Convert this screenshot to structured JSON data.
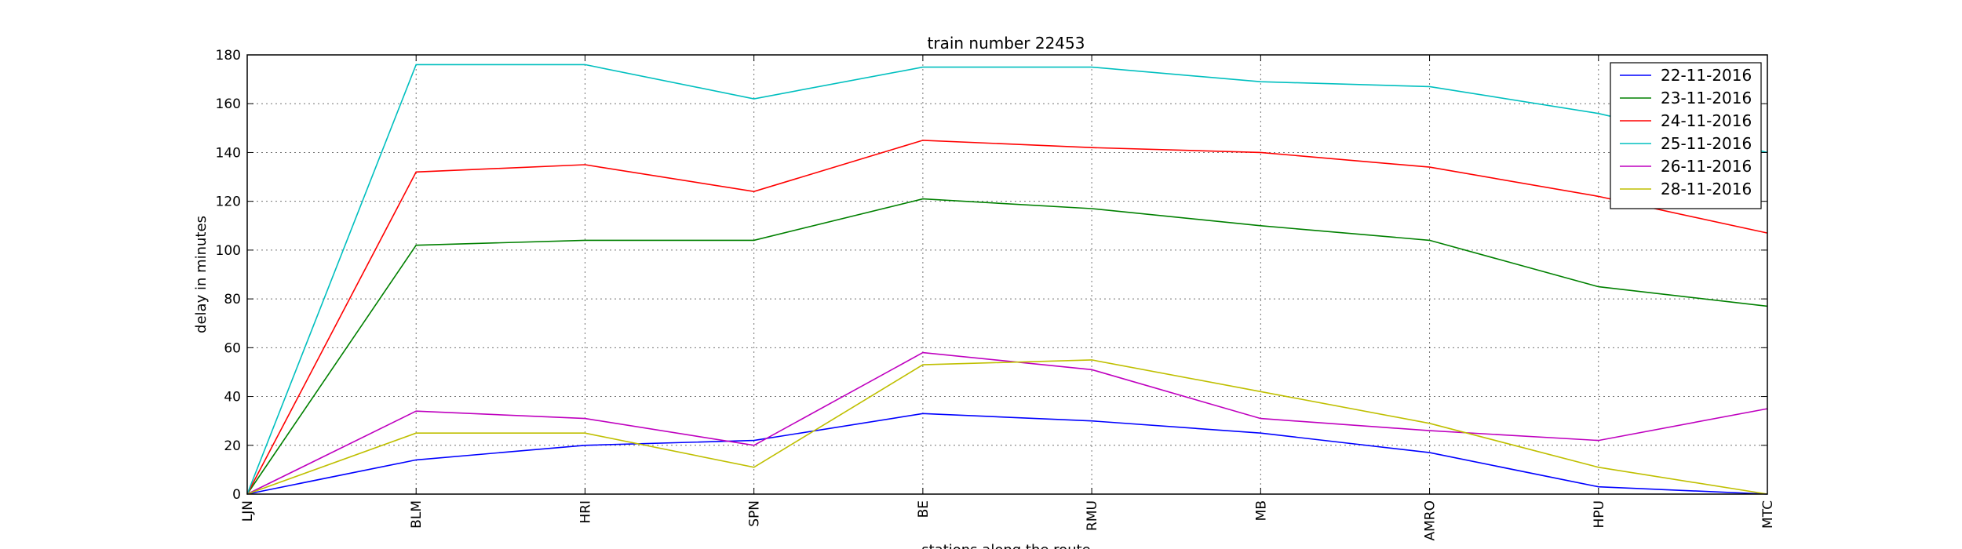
{
  "chart_data": {
    "type": "line",
    "title": "train number 22453",
    "xlabel": "stations along the route",
    "ylabel": "delay in minutes",
    "categories": [
      "LJN",
      "BLM",
      "HRI",
      "SPN",
      "BE",
      "RMU",
      "MB",
      "AMRO",
      "HPU",
      "MTC"
    ],
    "ylim": [
      0,
      180
    ],
    "yticks": [
      0,
      20,
      40,
      60,
      80,
      100,
      120,
      140,
      160,
      180
    ],
    "grid": true,
    "legend_position": "top-right",
    "series": [
      {
        "name": "22-11-2016",
        "color": "#0000ff",
        "values": [
          0,
          14,
          20,
          22,
          33,
          30,
          25,
          17,
          3,
          0
        ]
      },
      {
        "name": "23-11-2016",
        "color": "#008000",
        "values": [
          0,
          102,
          104,
          104,
          121,
          117,
          110,
          104,
          85,
          77
        ]
      },
      {
        "name": "24-11-2016",
        "color": "#ff0000",
        "values": [
          0,
          132,
          135,
          124,
          145,
          142,
          140,
          134,
          122,
          107
        ]
      },
      {
        "name": "25-11-2016",
        "color": "#00bfbf",
        "values": [
          0,
          176,
          176,
          162,
          175,
          175,
          169,
          167,
          156,
          140
        ]
      },
      {
        "name": "26-11-2016",
        "color": "#bf00bf",
        "values": [
          0,
          34,
          31,
          20,
          58,
          51,
          31,
          26,
          22,
          35
        ]
      },
      {
        "name": "28-11-2016",
        "color": "#bfbf00",
        "values": [
          0,
          25,
          25,
          11,
          53,
          55,
          42,
          29,
          11,
          0
        ]
      }
    ]
  }
}
